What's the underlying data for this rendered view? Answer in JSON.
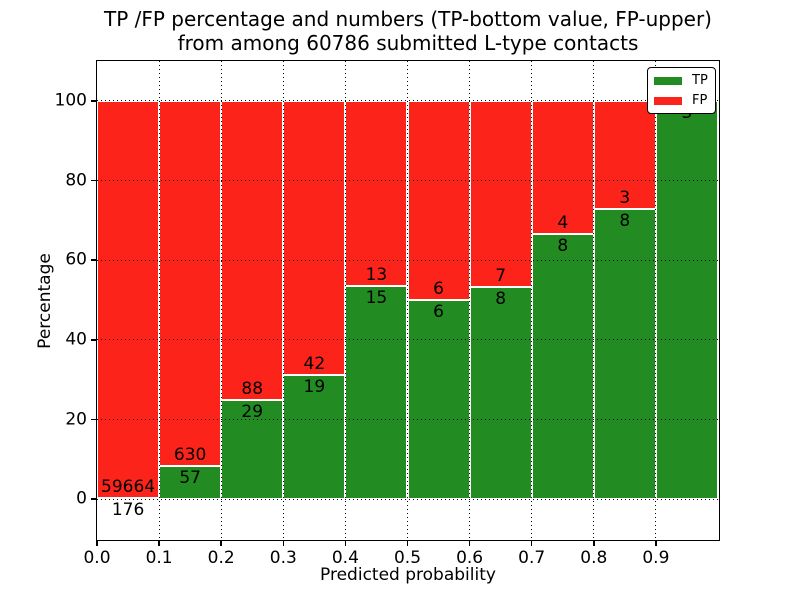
{
  "figure": {
    "title_line1": "TP /FP percentage and numbers (TP-bottom value, FP-upper)",
    "title_line2": "from among 60786 submitted L-type contacts",
    "xlabel": "Predicted probability",
    "ylabel": "Percentage"
  },
  "colors": {
    "tp_green": "#228b22",
    "fp_red": "#fb231a",
    "grid": "#000000",
    "background": "#ffffff",
    "text": "#000000"
  },
  "legend": {
    "position": "upper right",
    "items": [
      {
        "label": "TP",
        "color": "#228b22"
      },
      {
        "label": "FP",
        "color": "#fb231a"
      }
    ]
  },
  "chart_data": {
    "type": "bar",
    "stacked": true,
    "normalized": "each bin stacked to 100%",
    "title": "TP /FP percentage and numbers (TP-bottom value, FP-upper) from among 60786 submitted L-type contacts",
    "xlabel": "Predicted probability",
    "ylabel": "Percentage",
    "total_submitted": 60786,
    "categories": [
      "0.0-0.1",
      "0.1-0.2",
      "0.2-0.3",
      "0.3-0.4",
      "0.4-0.5",
      "0.5-0.6",
      "0.6-0.7",
      "0.7-0.8",
      "0.8-0.9",
      "0.9-1.0"
    ],
    "series": [
      {
        "name": "TP",
        "counts": [
          176,
          57,
          29,
          19,
          15,
          6,
          8,
          8,
          8,
          3
        ]
      },
      {
        "name": "FP",
        "counts": [
          59664,
          630,
          88,
          42,
          13,
          6,
          7,
          4,
          3,
          0
        ]
      }
    ],
    "tp_percent_of_bin": [
      0.3,
      8.3,
      24.8,
      31.1,
      53.6,
      50.0,
      53.3,
      66.7,
      72.7,
      100.0
    ],
    "xticks": [
      "0.0",
      "0.1",
      "0.2",
      "0.3",
      "0.4",
      "0.5",
      "0.6",
      "0.7",
      "0.8",
      "0.9"
    ],
    "yticks": [
      0,
      20,
      40,
      60,
      80,
      100
    ],
    "xlim": [
      0.0,
      1.0
    ],
    "ylim": [
      -10,
      110
    ],
    "grid": "dotted",
    "legend_position": "upper right",
    "label_convention": "FP count above TP/FP boundary, TP count below"
  }
}
